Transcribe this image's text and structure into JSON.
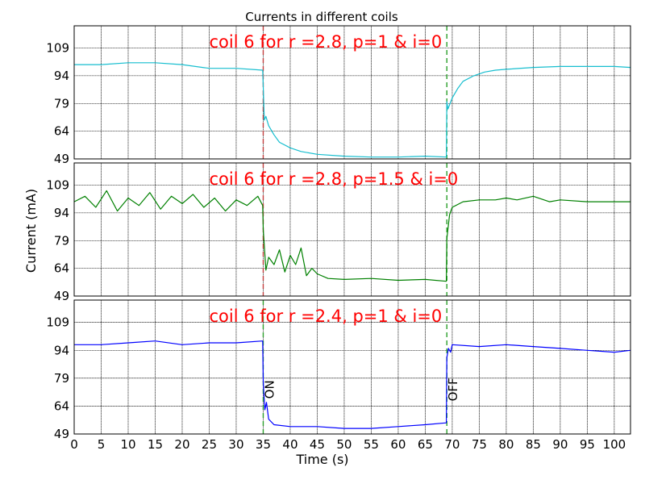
{
  "chart_data": {
    "type": "line",
    "title": "Currents in different coils",
    "xlabel": "Time (s)",
    "ylabel": "Current (mA)",
    "grid": true,
    "xlim": [
      0,
      103
    ],
    "ylim": [
      49,
      121
    ],
    "xticks": [
      0,
      5,
      10,
      15,
      20,
      25,
      30,
      35,
      40,
      45,
      50,
      55,
      60,
      65,
      70,
      75,
      80,
      85,
      90,
      95,
      100
    ],
    "yticks": [
      49,
      64,
      79,
      94,
      109
    ],
    "vlines": [
      {
        "x": 35,
        "label": "ON"
      },
      {
        "x": 69,
        "label": "OFF"
      }
    ],
    "panels": [
      {
        "annotation": "coil 6 for r =2.8, p=1 & i=0",
        "color": "#17becf",
        "vline_colors": [
          "#c44040",
          "#2ca02c"
        ],
        "series": {
          "x": [
            0,
            5,
            10,
            15,
            20,
            25,
            30,
            34.9,
            35,
            35.2,
            35.5,
            36,
            37,
            38,
            40,
            42,
            45,
            50,
            55,
            60,
            65,
            68.9,
            69,
            69.2,
            70,
            71,
            72,
            74,
            76,
            78,
            80,
            85,
            90,
            95,
            100,
            103
          ],
          "y": [
            100,
            100,
            101,
            101,
            100,
            98,
            98,
            97,
            88,
            70,
            72,
            67,
            62,
            58,
            55,
            53,
            51.5,
            50.5,
            50,
            50,
            50.5,
            50,
            80,
            76,
            82,
            87,
            91,
            94,
            96,
            97,
            97.5,
            98.5,
            99,
            99,
            99,
            98.5
          ]
        }
      },
      {
        "annotation": "coil 6 for r =2.8, p=1.5 & i=0",
        "color": "#008000",
        "vline_colors": [
          "#c44040",
          "#2ca02c"
        ],
        "series": {
          "x": [
            0,
            2,
            4,
            6,
            8,
            10,
            12,
            14,
            16,
            18,
            20,
            22,
            24,
            26,
            28,
            30,
            32,
            34,
            34.9,
            35,
            35.5,
            36,
            37,
            38,
            39,
            40,
            41,
            42,
            43,
            44,
            45,
            47,
            50,
            55,
            60,
            65,
            68.9,
            69,
            69.5,
            70,
            72,
            75,
            78,
            80,
            82,
            85,
            88,
            90,
            95,
            100,
            103
          ],
          "y": [
            100,
            103,
            97,
            106,
            95,
            102,
            98,
            105,
            96,
            103,
            99,
            104,
            97,
            102,
            95,
            101,
            98,
            103,
            98,
            85,
            63,
            70,
            66,
            74,
            62,
            71,
            66,
            75,
            60,
            64,
            61,
            58.5,
            58,
            58.5,
            57.5,
            58,
            57,
            80,
            93,
            97,
            100,
            101,
            101,
            102,
            101,
            103,
            100,
            101,
            100,
            100,
            100
          ]
        }
      },
      {
        "annotation": "coil 6 for r =2.4, p=1 & i=0",
        "color": "#0000ff",
        "vline_colors": [
          "#2ca02c",
          "#2ca02c"
        ],
        "series": {
          "x": [
            0,
            5,
            10,
            15,
            20,
            25,
            30,
            34.9,
            35,
            35.3,
            35.6,
            36,
            37,
            40,
            45,
            50,
            55,
            60,
            65,
            68.9,
            69,
            69.3,
            69.7,
            70,
            75,
            80,
            85,
            90,
            95,
            100,
            103
          ],
          "y": [
            97,
            97,
            98,
            99,
            97,
            98,
            98,
            99,
            77,
            62,
            66,
            57,
            54,
            53,
            53,
            52,
            52,
            53,
            54,
            55,
            90,
            95,
            93,
            97,
            96,
            97,
            96,
            95,
            94,
            93,
            94
          ]
        }
      }
    ]
  }
}
